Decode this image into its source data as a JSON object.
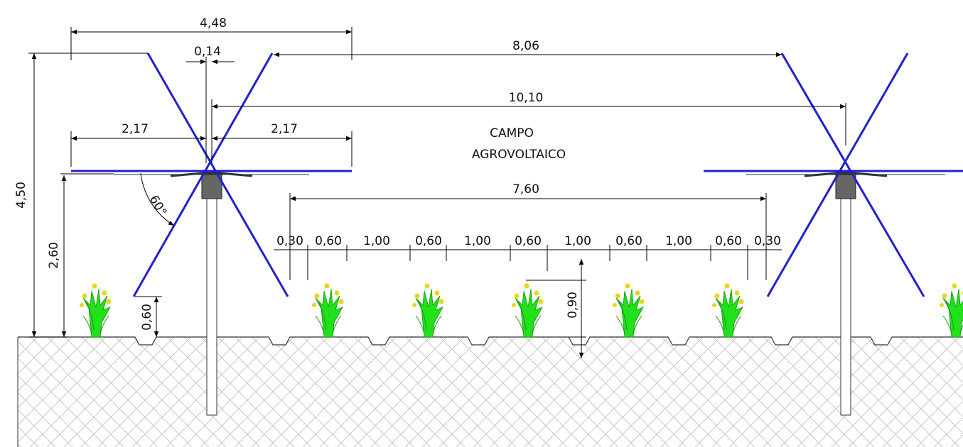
{
  "dimensions": {
    "top_span": "4,48",
    "post_width": "0,14",
    "panel_gap": "8,06",
    "pitch": "10,10",
    "half_left": "2,17",
    "half_right": "2,17",
    "rows_span": "7,60",
    "rows": [
      "0,30",
      "0,60",
      "1,00",
      "0,60",
      "1,00",
      "0,60",
      "1,00",
      "0,60",
      "1,00",
      "0,60",
      "0,30"
    ],
    "max_height": "4,50",
    "axis_height": "2,60",
    "min_height": "0,60",
    "plant_height": "0,90"
  },
  "field_label": [
    "CAMPO",
    "AGROVOLTAICO"
  ],
  "tilt_angle": "60°"
}
